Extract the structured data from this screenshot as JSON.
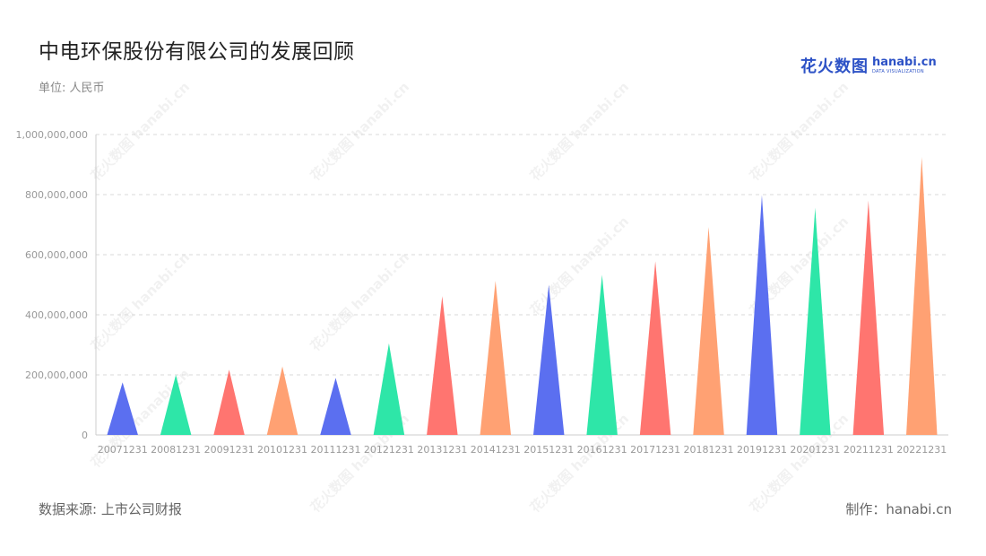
{
  "header": {
    "title": "中电环保股份有限公司的发展回顾",
    "unit": "单位: 人民币"
  },
  "brand": {
    "cn": "花火数图",
    "en": "hanabi.cn",
    "en_sub": "DATA VISUALIZATION",
    "color": "#2d52c6"
  },
  "footer": {
    "source": "数据来源: 上市公司财报",
    "credit": "制作：hanabi.cn"
  },
  "chart_data": {
    "type": "bar",
    "mark_shape": "triangle",
    "categories": [
      "20071231",
      "20081231",
      "20091231",
      "20101231",
      "20111231",
      "20121231",
      "20131231",
      "20141231",
      "20151231",
      "20161231",
      "20171231",
      "20181231",
      "20191231",
      "20201231",
      "20211231",
      "20221231"
    ],
    "values": [
      175000000,
      200000000,
      217000000,
      228000000,
      190000000,
      305000000,
      462000000,
      513000000,
      500000000,
      533000000,
      578000000,
      692000000,
      798000000,
      756000000,
      780000000,
      925000000
    ],
    "colors": [
      "#5b6ff0",
      "#2ee6a8",
      "#ff7570",
      "#ffa173",
      "#5b6ff0",
      "#2ee6a8",
      "#ff7570",
      "#ffa173",
      "#5b6ff0",
      "#2ee6a8",
      "#ff7570",
      "#ffa173",
      "#5b6ff0",
      "#2ee6a8",
      "#ff7570",
      "#ffa173"
    ],
    "ylim": [
      0,
      1000000000
    ],
    "yticks": [
      0,
      200000000,
      400000000,
      600000000,
      800000000,
      1000000000
    ],
    "ytick_labels": [
      "0",
      "200,000,000",
      "400,000,000",
      "600,000,000",
      "800,000,000",
      "1,000,000,000"
    ],
    "grid": true
  }
}
